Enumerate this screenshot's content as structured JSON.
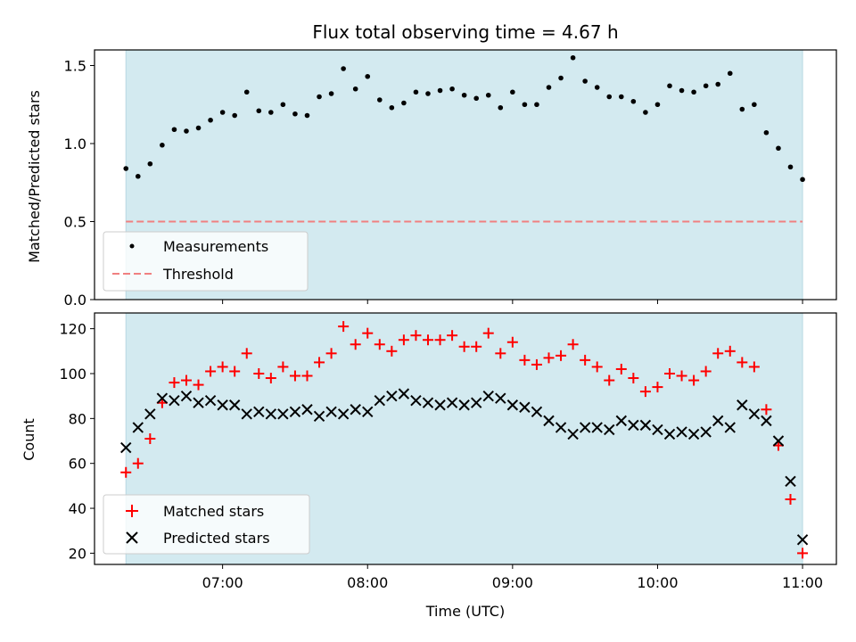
{
  "chart_data": [
    {
      "type": "scatter",
      "title": "Flux total observing time = 4.67 h",
      "ylabel": "Matched/Predicted stars",
      "xlabel": "",
      "ylim": [
        0,
        1.6
      ],
      "yticks": [
        0.0,
        0.5,
        1.0,
        1.5
      ],
      "ytick_labels": [
        "0.0",
        "0.5",
        "1.0",
        "1.5"
      ],
      "x_range": [
        "06:07",
        "11:14"
      ],
      "shaded_span": [
        "06:20",
        "11:00"
      ],
      "shaded_color": "#d3eaf0",
      "grid": false,
      "legend_position": "lower-left",
      "series": [
        {
          "name": "Measurements",
          "marker": "dot",
          "color": "#000000",
          "x": [
            "06:20",
            "06:25",
            "06:30",
            "06:35",
            "06:40",
            "06:45",
            "06:50",
            "06:55",
            "07:00",
            "07:05",
            "07:10",
            "07:15",
            "07:20",
            "07:25",
            "07:30",
            "07:35",
            "07:40",
            "07:45",
            "07:50",
            "07:55",
            "08:00",
            "08:05",
            "08:10",
            "08:15",
            "08:20",
            "08:25",
            "08:30",
            "08:35",
            "08:40",
            "08:45",
            "08:50",
            "08:55",
            "09:00",
            "09:05",
            "09:10",
            "09:15",
            "09:20",
            "09:25",
            "09:30",
            "09:35",
            "09:40",
            "09:45",
            "09:50",
            "09:55",
            "10:00",
            "10:05",
            "10:10",
            "10:15",
            "10:20",
            "10:25",
            "10:30",
            "10:35",
            "10:40",
            "10:45",
            "10:50",
            "10:55",
            "11:00"
          ],
          "values": [
            0.84,
            0.79,
            0.87,
            0.99,
            1.09,
            1.08,
            1.1,
            1.15,
            1.2,
            1.18,
            1.33,
            1.21,
            1.2,
            1.25,
            1.19,
            1.18,
            1.3,
            1.32,
            1.48,
            1.35,
            1.43,
            1.28,
            1.23,
            1.26,
            1.33,
            1.32,
            1.34,
            1.35,
            1.31,
            1.29,
            1.31,
            1.23,
            1.33,
            1.25,
            1.25,
            1.36,
            1.42,
            1.55,
            1.4,
            1.36,
            1.3,
            1.3,
            1.27,
            1.2,
            1.25,
            1.37,
            1.34,
            1.33,
            1.37,
            1.38,
            1.45,
            1.22,
            1.25,
            1.07,
            0.97,
            0.85,
            0.77
          ]
        },
        {
          "name": "Threshold",
          "marker": "dashed-line",
          "color": "#f08080",
          "x": [
            "06:20",
            "11:00"
          ],
          "values": [
            0.5,
            0.5
          ]
        }
      ]
    },
    {
      "type": "scatter",
      "title": "",
      "ylabel": "Count",
      "xlabel": "Time (UTC)",
      "ylim": [
        15,
        127
      ],
      "yticks": [
        20,
        40,
        60,
        80,
        100,
        120
      ],
      "ytick_labels": [
        "20",
        "40",
        "60",
        "80",
        "100",
        "120"
      ],
      "xticks": [
        "07:00",
        "08:00",
        "09:00",
        "10:00",
        "11:00"
      ],
      "x_range": [
        "06:07",
        "11:14"
      ],
      "shaded_span": [
        "06:20",
        "11:00"
      ],
      "shaded_color": "#d3eaf0",
      "grid": false,
      "legend_position": "lower-left",
      "series": [
        {
          "name": "Matched stars",
          "marker": "plus",
          "color": "#ff0000",
          "x": [
            "06:20",
            "06:25",
            "06:30",
            "06:35",
            "06:40",
            "06:45",
            "06:50",
            "06:55",
            "07:00",
            "07:05",
            "07:10",
            "07:15",
            "07:20",
            "07:25",
            "07:30",
            "07:35",
            "07:40",
            "07:45",
            "07:50",
            "07:55",
            "08:00",
            "08:05",
            "08:10",
            "08:15",
            "08:20",
            "08:25",
            "08:30",
            "08:35",
            "08:40",
            "08:45",
            "08:50",
            "08:55",
            "09:00",
            "09:05",
            "09:10",
            "09:15",
            "09:20",
            "09:25",
            "09:30",
            "09:35",
            "09:40",
            "09:45",
            "09:50",
            "09:55",
            "10:00",
            "10:05",
            "10:10",
            "10:15",
            "10:20",
            "10:25",
            "10:30",
            "10:35",
            "10:40",
            "10:45",
            "10:50",
            "10:55",
            "11:00"
          ],
          "values": [
            56,
            60,
            71,
            87,
            96,
            97,
            95,
            101,
            103,
            101,
            109,
            100,
            98,
            103,
            99,
            99,
            105,
            109,
            121,
            113,
            118,
            113,
            110,
            115,
            117,
            115,
            115,
            117,
            112,
            112,
            118,
            109,
            114,
            106,
            104,
            107,
            108,
            113,
            106,
            103,
            97,
            102,
            98,
            92,
            94,
            100,
            99,
            97,
            101,
            109,
            110,
            105,
            103,
            84,
            68,
            44,
            20
          ]
        },
        {
          "name": "Predicted stars",
          "marker": "cross",
          "color": "#000000",
          "x": [
            "06:20",
            "06:25",
            "06:30",
            "06:35",
            "06:40",
            "06:45",
            "06:50",
            "06:55",
            "07:00",
            "07:05",
            "07:10",
            "07:15",
            "07:20",
            "07:25",
            "07:30",
            "07:35",
            "07:40",
            "07:45",
            "07:50",
            "07:55",
            "08:00",
            "08:05",
            "08:10",
            "08:15",
            "08:20",
            "08:25",
            "08:30",
            "08:35",
            "08:40",
            "08:45",
            "08:50",
            "08:55",
            "09:00",
            "09:05",
            "09:10",
            "09:15",
            "09:20",
            "09:25",
            "09:30",
            "09:35",
            "09:40",
            "09:45",
            "09:50",
            "09:55",
            "10:00",
            "10:05",
            "10:10",
            "10:15",
            "10:20",
            "10:25",
            "10:30",
            "10:35",
            "10:40",
            "10:45",
            "10:50",
            "10:55",
            "11:00"
          ],
          "values": [
            67,
            76,
            82,
            89,
            88,
            90,
            87,
            88,
            86,
            86,
            82,
            83,
            82,
            82,
            83,
            84,
            81,
            83,
            82,
            84,
            83,
            88,
            90,
            91,
            88,
            87,
            86,
            87,
            86,
            87,
            90,
            89,
            86,
            85,
            83,
            79,
            76,
            73,
            76,
            76,
            75,
            79,
            77,
            77,
            75,
            73,
            74,
            73,
            74,
            79,
            76,
            86,
            82,
            79,
            70,
            52,
            26
          ]
        }
      ]
    }
  ]
}
